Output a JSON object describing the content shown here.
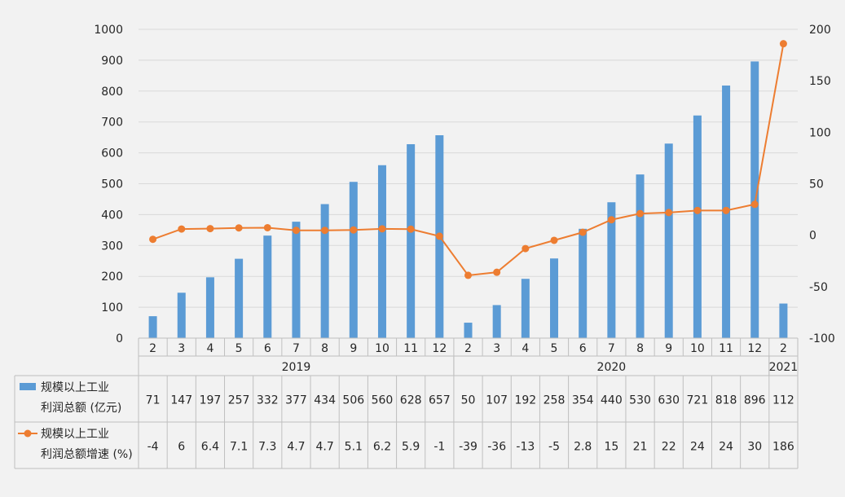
{
  "chart_data": {
    "type": "bar+line",
    "title": "",
    "categories": [
      "2",
      "3",
      "4",
      "5",
      "6",
      "7",
      "8",
      "9",
      "10",
      "11",
      "12",
      "2",
      "3",
      "4",
      "5",
      "6",
      "7",
      "8",
      "9",
      "10",
      "11",
      "12",
      "2"
    ],
    "year_groups": [
      {
        "label": "2019",
        "start": 0,
        "count": 11
      },
      {
        "label": "2020",
        "start": 11,
        "count": 11
      },
      {
        "label": "2021",
        "start": 22,
        "count": 1
      }
    ],
    "series": [
      {
        "name_line1": "规模以上工业",
        "name_line2": "利润总额 (亿元)",
        "type": "bar",
        "axis": "left",
        "color": "#5b9bd5",
        "values": [
          71,
          147,
          197,
          257,
          332,
          377,
          434,
          506,
          560,
          628,
          657,
          50,
          107,
          192,
          258,
          354,
          440,
          530,
          630,
          721,
          818,
          896,
          112
        ],
        "table_labels": [
          "71",
          "147",
          "197",
          "257",
          "332",
          "377",
          "434",
          "506",
          "560",
          "628",
          "657",
          "50",
          "107",
          "192",
          "258",
          "354",
          "440",
          "530",
          "630",
          "721",
          "818",
          "896",
          "112"
        ]
      },
      {
        "name_line1": "规模以上工业",
        "name_line2": "利润总额增速 (%)",
        "type": "line",
        "axis": "right",
        "color": "#ed7d31",
        "values": [
          -4,
          6,
          6.4,
          7.1,
          7.3,
          4.7,
          4.7,
          5.1,
          6.2,
          5.9,
          -1,
          -39,
          -36,
          -13,
          -5,
          2.8,
          15,
          21,
          22,
          24,
          24,
          30,
          186
        ],
        "table_labels": [
          "-4",
          "6",
          "6.4",
          "7.1",
          "7.3",
          "4.7",
          "4.7",
          "5.1",
          "6.2",
          "5.9",
          "-1",
          "-39",
          "-36",
          "-13",
          "-5",
          "2.8",
          "15",
          "21",
          "22",
          "24",
          "24",
          "30",
          "186"
        ]
      }
    ],
    "y_left": {
      "min": 0,
      "max": 1000,
      "ticks": [
        "0",
        "100",
        "200",
        "300",
        "400",
        "500",
        "600",
        "700",
        "800",
        "900",
        "1000"
      ]
    },
    "y_right": {
      "min": -100,
      "max": 200,
      "ticks": [
        "-100",
        "-50",
        "0",
        "50",
        "100",
        "150",
        "200"
      ]
    },
    "grid": "horizontal",
    "legend": "data-table"
  }
}
